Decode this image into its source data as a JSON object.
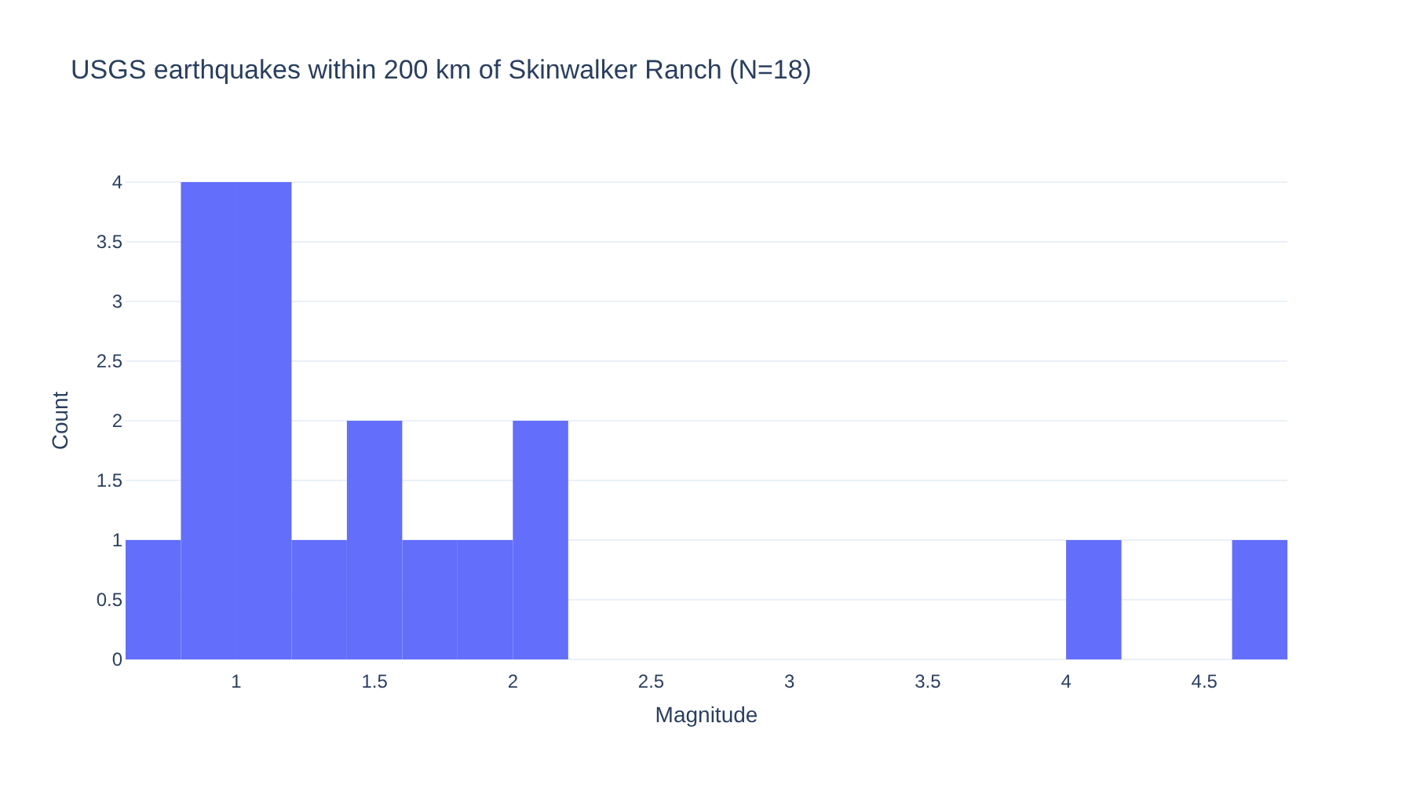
{
  "chart_data": {
    "type": "histogram",
    "title": "USGS earthquakes within 200 km of Skinwalker Ranch (N=18)",
    "xlabel": "Magnitude",
    "ylabel": "Count",
    "bins": [
      0.6,
      0.8,
      1.0,
      1.2,
      1.4,
      1.6,
      1.8,
      2.0,
      2.2,
      2.4,
      2.6,
      2.8,
      3.0,
      3.2,
      3.4,
      3.6,
      3.8,
      4.0,
      4.2,
      4.4,
      4.6,
      4.8
    ],
    "values": [
      1,
      4,
      4,
      1,
      2,
      1,
      1,
      2,
      0,
      0,
      0,
      0,
      0,
      0,
      0,
      0,
      0,
      1,
      0,
      0,
      1
    ],
    "color": "#636efa",
    "xlim": [
      0.6,
      4.8
    ],
    "xticks": [
      1,
      1.5,
      2,
      2.5,
      3,
      3.5,
      4,
      4.5
    ],
    "ylim": [
      0,
      4
    ],
    "yticks": [
      0,
      0.5,
      1,
      1.5,
      2,
      2.5,
      3,
      3.5,
      4
    ],
    "grid": "y"
  }
}
